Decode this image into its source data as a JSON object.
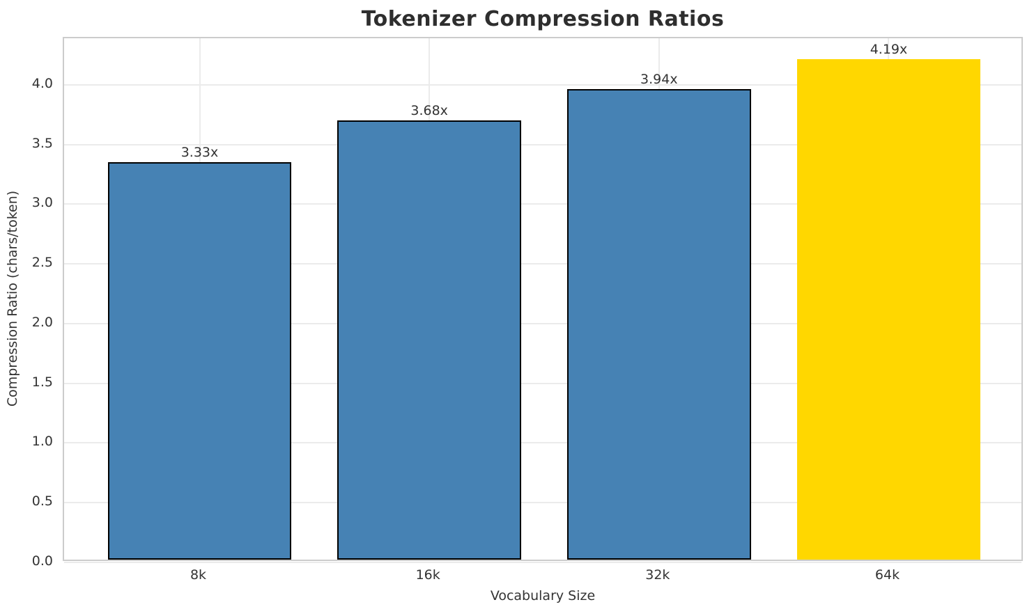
{
  "chart_data": {
    "type": "bar",
    "title": "Tokenizer Compression Ratios",
    "xlabel": "Vocabulary Size",
    "ylabel": "Compression Ratio (chars/token)",
    "categories": [
      "8k",
      "16k",
      "32k",
      "64k"
    ],
    "values": [
      3.33,
      3.68,
      3.94,
      4.19
    ],
    "bar_labels": [
      "3.33x",
      "3.68x",
      "3.94x",
      "4.19x"
    ],
    "bar_colors": [
      "#4682b4",
      "#4682b4",
      "#4682b4",
      "#ffd700"
    ],
    "bar_edge_colors": [
      "#000000",
      "#000000",
      "#000000",
      "none"
    ],
    "highlighted_category": "64k",
    "ylim": [
      0,
      4.39
    ],
    "xlim": [
      -0.59,
      3.59
    ],
    "bar_width_units": 0.8,
    "yticks": [
      "0.0",
      "0.5",
      "1.0",
      "1.5",
      "2.0",
      "2.5",
      "3.0",
      "3.5",
      "4.0"
    ],
    "ytick_values": [
      0,
      0.5,
      1.0,
      1.5,
      2.0,
      2.5,
      3.0,
      3.5,
      4.0
    ],
    "grid": true,
    "legend": "none",
    "colors": {
      "bar_default": "#4682b4",
      "bar_highlight": "#ffd700",
      "bar_edge": "#000000",
      "grid": "#ebebeb",
      "spine": "#cccccc",
      "text": "#333333",
      "title": "#2e2e2e",
      "background": "#ffffff"
    }
  }
}
